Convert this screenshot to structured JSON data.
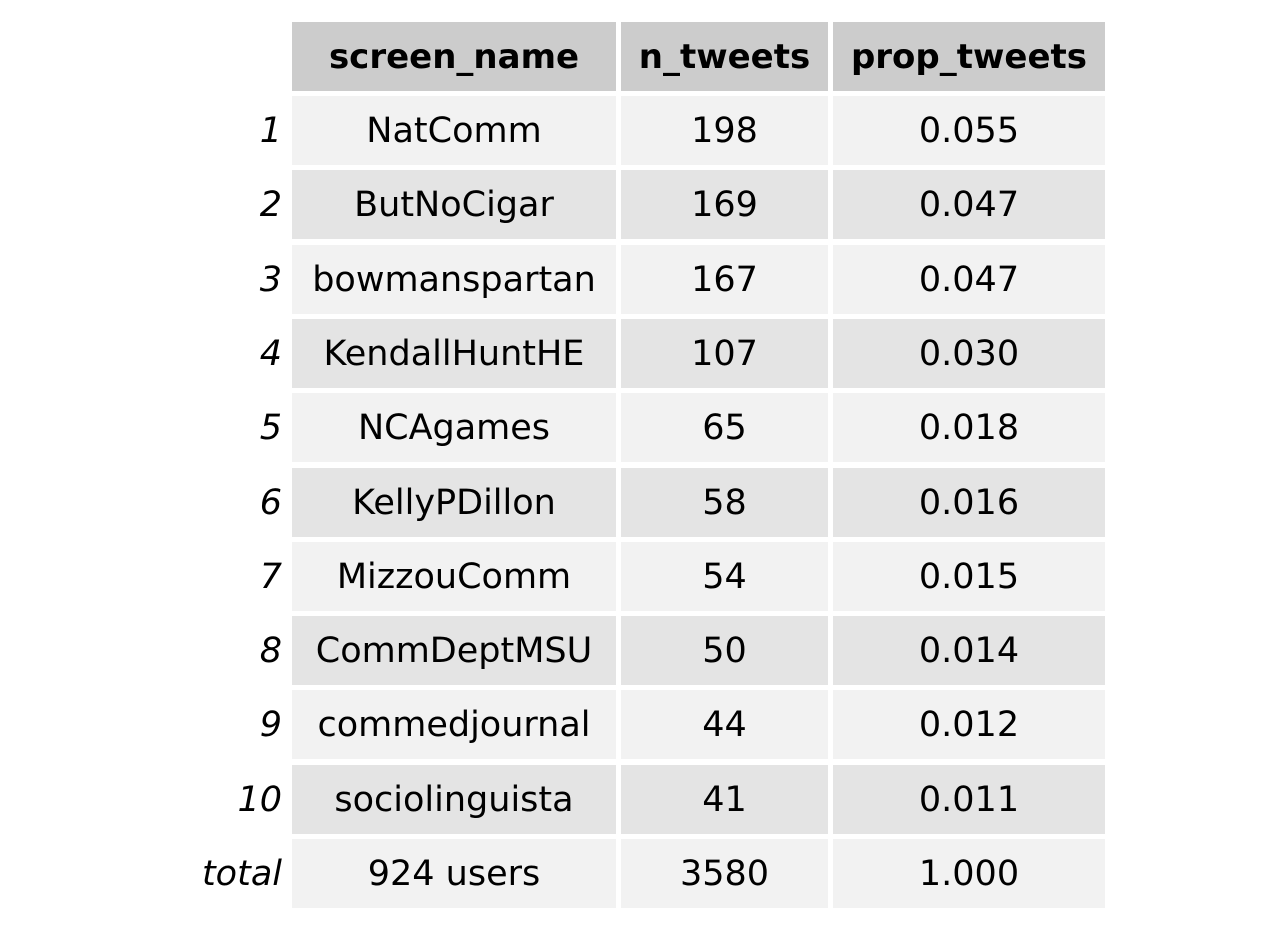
{
  "chart_data": {
    "type": "table",
    "columns": [
      "screen_name",
      "n_tweets",
      "prop_tweets"
    ],
    "rows": [
      {
        "label": "1",
        "values": [
          "NatComm",
          "198",
          "0.055"
        ]
      },
      {
        "label": "2",
        "values": [
          "ButNoCigar",
          "169",
          "0.047"
        ]
      },
      {
        "label": "3",
        "values": [
          "bowmanspartan",
          "167",
          "0.047"
        ]
      },
      {
        "label": "4",
        "values": [
          "KendallHuntHE",
          "107",
          "0.030"
        ]
      },
      {
        "label": "5",
        "values": [
          "NCAgames",
          "65",
          "0.018"
        ]
      },
      {
        "label": "6",
        "values": [
          "KellyPDillon",
          "58",
          "0.016"
        ]
      },
      {
        "label": "7",
        "values": [
          "MizzouComm",
          "54",
          "0.015"
        ]
      },
      {
        "label": "8",
        "values": [
          "CommDeptMSU",
          "50",
          "0.014"
        ]
      },
      {
        "label": "9",
        "values": [
          "commedjournal",
          "44",
          "0.012"
        ]
      },
      {
        "label": "10",
        "values": [
          "sociolinguista",
          "41",
          "0.011"
        ]
      },
      {
        "label": "total",
        "values": [
          "924 users",
          "3580",
          "1.000"
        ]
      }
    ],
    "colors": {
      "header": "#cccccc",
      "row_light": "#f2f2f2",
      "row_dark": "#e4e4e4"
    }
  }
}
